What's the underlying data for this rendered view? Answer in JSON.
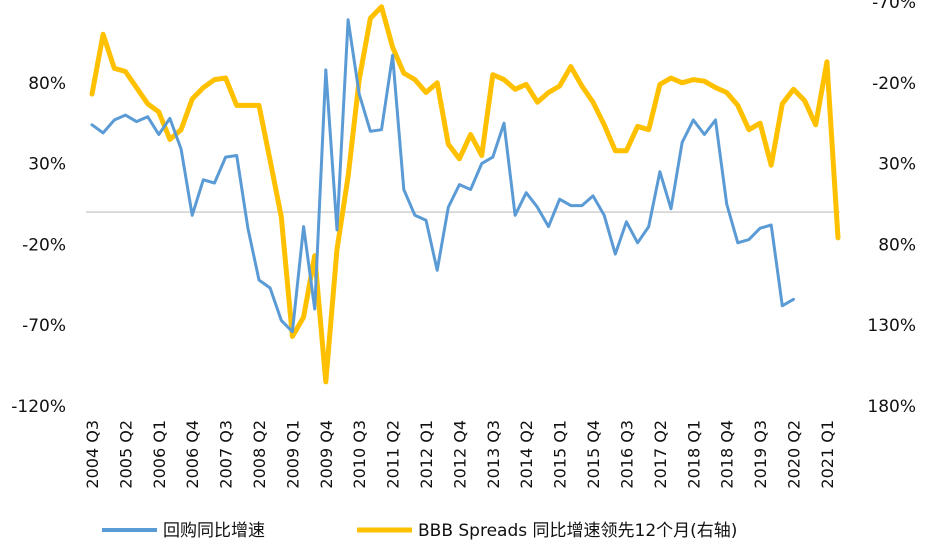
{
  "chart_data": {
    "type": "line",
    "x": [
      "2004 Q3",
      "2004 Q4",
      "2005 Q1",
      "2005 Q2",
      "2005 Q3",
      "2005 Q4",
      "2006 Q1",
      "2006 Q2",
      "2006 Q3",
      "2006 Q4",
      "2007 Q1",
      "2007 Q2",
      "2007 Q3",
      "2007 Q4",
      "2008 Q1",
      "2008 Q2",
      "2008 Q3",
      "2008 Q4",
      "2009 Q1",
      "2009 Q2",
      "2009 Q3",
      "2009 Q4",
      "2010 Q1",
      "2010 Q2",
      "2010 Q3",
      "2010 Q4",
      "2011 Q1",
      "2011 Q2",
      "2011 Q3",
      "2011 Q4",
      "2012 Q1",
      "2012 Q2",
      "2012 Q3",
      "2012 Q4",
      "2013 Q1",
      "2013 Q2",
      "2013 Q3",
      "2013 Q4",
      "2014 Q1",
      "2014 Q2",
      "2014 Q3",
      "2014 Q4",
      "2015 Q1",
      "2015 Q2",
      "2015 Q3",
      "2015 Q4",
      "2016 Q1",
      "2016 Q2",
      "2016 Q3",
      "2016 Q4",
      "2017 Q1",
      "2017 Q2",
      "2017 Q3",
      "2017 Q4",
      "2018 Q1",
      "2018 Q2",
      "2018 Q3",
      "2018 Q4",
      "2019 Q1",
      "2019 Q2",
      "2019 Q3",
      "2019 Q4",
      "2020 Q1",
      "2020 Q2",
      "2020 Q3",
      "2020 Q4",
      "2021 Q1",
      "2021 Q2"
    ],
    "x_tick_labels": [
      "2004 Q3",
      "2005 Q2",
      "2006 Q1",
      "2006 Q4",
      "2007 Q3",
      "2008 Q2",
      "2009 Q1",
      "2009 Q4",
      "2010 Q3",
      "2011 Q2",
      "2012 Q1",
      "2012 Q4",
      "2013 Q3",
      "2014 Q2",
      "2015 Q1",
      "2015 Q4",
      "2016 Q3",
      "2017 Q2",
      "2018 Q1",
      "2018 Q4",
      "2019 Q3",
      "2020 Q2",
      "2021 Q1"
    ],
    "y_left": {
      "ylim": [
        -120,
        130
      ],
      "ticks": [
        "80%",
        "30%",
        "-20%",
        "-70%",
        "-120%"
      ],
      "tick_values": [
        80,
        30,
        -20,
        -70,
        -120
      ]
    },
    "y_right": {
      "ylim": [
        180,
        -70
      ],
      "inverted": true,
      "ticks": [
        "-70%",
        "-20%",
        "30%",
        "80%",
        "130%",
        "180%"
      ],
      "tick_values": [
        -70,
        -20,
        30,
        80,
        130,
        180
      ]
    },
    "series": [
      {
        "name": "回购同比增速",
        "axis": "left",
        "color": "#5b9bd5",
        "values": [
          54,
          49,
          57,
          60,
          56,
          59,
          48,
          58,
          39,
          -2,
          20,
          18,
          34,
          35,
          -10,
          -42,
          -47,
          -67,
          -74,
          -9,
          -60,
          88,
          -11,
          119,
          73,
          50,
          51,
          97,
          14,
          -2,
          -5,
          -36,
          3,
          17,
          14,
          30,
          34,
          55,
          -2,
          12,
          3,
          -9,
          8,
          4,
          4,
          10,
          -2,
          -26,
          -6,
          -19,
          -9,
          25,
          2,
          43,
          57,
          48,
          57,
          5,
          -19,
          -17,
          -10,
          -8,
          -58,
          -54,
          null,
          null,
          null,
          null
        ]
      },
      {
        "name": "BBB Spreads 同比增速领先12个月(右轴)",
        "axis": "right",
        "color": "#ffc000",
        "values": [
          -13,
          -50,
          -29,
          -27,
          -17,
          -7,
          -2,
          15,
          9,
          -10,
          -17,
          -22,
          -23,
          -6,
          -6,
          -6,
          28,
          63,
          137,
          125,
          87,
          165,
          83,
          38,
          -22,
          -60,
          -67,
          -42,
          -26,
          -22,
          -14,
          -20,
          18,
          27,
          12,
          25,
          -25,
          -22,
          -16,
          -19,
          -8,
          -14,
          -18,
          -30,
          -18,
          -8,
          6,
          22,
          22,
          7,
          9,
          -19,
          -23,
          -20,
          -22,
          -21,
          -17,
          -14,
          -6,
          9,
          5,
          31,
          -7,
          -16,
          -9,
          6,
          -33,
          76
        ]
      }
    ],
    "legend_placement": "bottom",
    "grid": false
  },
  "legend": {
    "series_1": "回购同比增速",
    "series_2": "BBB Spreads 同比增速领先12个月(右轴)"
  }
}
